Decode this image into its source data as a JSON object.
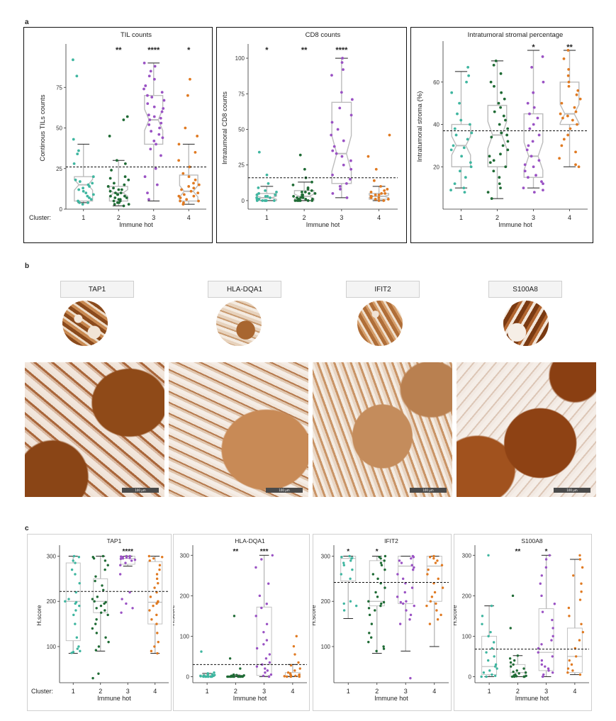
{
  "panel_labels": {
    "a": "a",
    "b": "b",
    "c": "c"
  },
  "x_axis": {
    "cluster_label": "Cluster:",
    "title": "Immune hot",
    "ticks": [
      "1",
      "2",
      "3",
      "4"
    ]
  },
  "colors": {
    "1": "#3fb6a0",
    "2": "#1f6b35",
    "3": "#9a52c4",
    "4": "#e07a22",
    "box": "#bcbcbc",
    "frame_a": "#111111",
    "frame_c": "#cfcfcf"
  },
  "ihc": {
    "markers": [
      "TAP1",
      "HLA-DQA1",
      "IFIT2",
      "S100A8"
    ],
    "scale_bar": "100 µm"
  },
  "chart_data": [
    {
      "type": "boxplot",
      "title": "TIL counts",
      "ylabel": "Continous TILs counts",
      "ylim": [
        0,
        100
      ],
      "yticks": [
        "0",
        "25",
        "50",
        "75"
      ],
      "ytick_values": [
        0,
        25,
        50,
        75
      ],
      "reference_line": 26,
      "significance": [
        "",
        "**",
        "****",
        "*"
      ],
      "notched": true,
      "boxes": [
        {
          "cluster": "1",
          "min": 4,
          "q1": 5,
          "median": 15,
          "q3": 20,
          "max": 40
        },
        {
          "cluster": "2",
          "min": 2,
          "q1": 5,
          "median": 10,
          "q3": 14,
          "max": 30
        },
        {
          "cluster": "3",
          "min": 5,
          "q1": 40,
          "median": 55,
          "q3": 70,
          "max": 90
        },
        {
          "cluster": "4",
          "min": 3,
          "q1": 5,
          "median": 11,
          "q3": 21,
          "max": 40
        }
      ],
      "points": [
        [
          92,
          82,
          43,
          36,
          34,
          28,
          20,
          18,
          17,
          16,
          15,
          14,
          13,
          12,
          11,
          10,
          9,
          8,
          7,
          6,
          5,
          4,
          4,
          3
        ],
        [
          57,
          55,
          45,
          30,
          28,
          24,
          20,
          19,
          18,
          16,
          15,
          14,
          13,
          12,
          12,
          11,
          10,
          10,
          9,
          9,
          8,
          8,
          7,
          7,
          6,
          6,
          5,
          5,
          4,
          4,
          3,
          3,
          2
        ],
        [
          90,
          88,
          85,
          82,
          80,
          76,
          74,
          72,
          70,
          69,
          67,
          65,
          63,
          62,
          60,
          58,
          57,
          56,
          55,
          53,
          52,
          50,
          48,
          46,
          44,
          42,
          40,
          37,
          33,
          25,
          20,
          15,
          10,
          6
        ],
        [
          80,
          70,
          50,
          45,
          40,
          35,
          30,
          26,
          22,
          20,
          18,
          16,
          15,
          14,
          13,
          12,
          11,
          10,
          9,
          8,
          8,
          7,
          6,
          5,
          5,
          4,
          3
        ]
      ]
    },
    {
      "type": "boxplot",
      "title": "CD8 counts",
      "ylabel": "Intratumoral CD8 counts",
      "ylim": [
        -6,
        108
      ],
      "yticks": [
        "0",
        "25",
        "50",
        "75",
        "100"
      ],
      "ytick_values": [
        0,
        25,
        50,
        75,
        100
      ],
      "reference_line": 16,
      "significance": [
        "*",
        "**",
        "****",
        ""
      ],
      "notched": true,
      "boxes": [
        {
          "cluster": "1",
          "min": 0,
          "q1": 0,
          "median": 2,
          "q3": 5,
          "max": 10
        },
        {
          "cluster": "2",
          "min": 0,
          "q1": 0,
          "median": 3,
          "q3": 7,
          "max": 13
        },
        {
          "cluster": "3",
          "min": 2,
          "q1": 12,
          "median": 33,
          "q3": 69,
          "max": 100
        },
        {
          "cluster": "4",
          "min": 0,
          "q1": 1,
          "median": 3,
          "q3": 5,
          "max": 10
        }
      ],
      "points": [
        [
          34,
          18,
          12,
          9,
          7,
          6,
          5,
          4,
          4,
          3,
          3,
          2,
          2,
          1,
          1,
          1,
          0,
          0,
          0,
          0,
          0,
          0
        ],
        [
          32,
          22,
          16,
          13,
          11,
          9,
          8,
          7,
          6,
          6,
          5,
          5,
          4,
          4,
          3,
          3,
          2,
          2,
          2,
          1,
          1,
          1,
          0,
          0,
          0,
          0,
          0,
          0
        ],
        [
          100,
          97,
          92,
          88,
          76,
          71,
          65,
          60,
          55,
          50,
          46,
          42,
          38,
          35,
          33,
          31,
          28,
          25,
          22,
          18,
          15,
          12,
          10,
          8,
          5,
          2
        ],
        [
          46,
          31,
          22,
          14,
          10,
          8,
          7,
          6,
          5,
          5,
          4,
          4,
          3,
          3,
          2,
          2,
          1,
          1,
          0,
          0
        ]
      ]
    },
    {
      "type": "boxplot",
      "title": "Intratumoral stromal percentage",
      "ylabel": "Intratumoral stroma (%)",
      "ylim": [
        0,
        78
      ],
      "yticks": [
        "20",
        "40",
        "60"
      ],
      "ytick_values": [
        20,
        40,
        60
      ],
      "reference_line": 37,
      "significance": [
        "",
        "",
        "*",
        "**"
      ],
      "notched": true,
      "boxes": [
        {
          "cluster": "1",
          "min": 10,
          "q1": 20,
          "median": 30,
          "q3": 40,
          "max": 65
        },
        {
          "cluster": "2",
          "min": 5,
          "q1": 20,
          "median": 35,
          "q3": 49,
          "max": 70
        },
        {
          "cluster": "3",
          "min": 10,
          "q1": 15,
          "median": 25,
          "q3": 45,
          "max": 75
        },
        {
          "cluster": "4",
          "min": 20,
          "q1": 40,
          "median": 45,
          "q3": 60,
          "max": 75
        }
      ],
      "points": [
        [
          67,
          63,
          60,
          55,
          50,
          45,
          42,
          40,
          38,
          36,
          35,
          33,
          30,
          29,
          28,
          25,
          22,
          20,
          18,
          15,
          12,
          10,
          9,
          8
        ],
        [
          70,
          68,
          64,
          60,
          58,
          55,
          52,
          50,
          48,
          46,
          44,
          42,
          40,
          38,
          36,
          35,
          34,
          32,
          30,
          28,
          26,
          25,
          23,
          22,
          20,
          18,
          15,
          12,
          10,
          8,
          5
        ],
        [
          72,
          67,
          60,
          55,
          50,
          48,
          45,
          43,
          40,
          38,
          35,
          32,
          30,
          28,
          25,
          23,
          21,
          20,
          18,
          16,
          15,
          13,
          12,
          10,
          9,
          8
        ],
        [
          75,
          71,
          66,
          63,
          60,
          58,
          56,
          54,
          52,
          50,
          48,
          46,
          45,
          44,
          43,
          42,
          40,
          38,
          35,
          33,
          30,
          27,
          24,
          21,
          20
        ]
      ]
    },
    {
      "type": "boxplot",
      "title": "TAP1",
      "ylabel": "H.score",
      "ylim": [
        20,
        318
      ],
      "yticks": [
        "100",
        "200",
        "300"
      ],
      "ytick_values": [
        100,
        200,
        300
      ],
      "reference_line": 222,
      "significance": [
        "",
        "",
        "****",
        ""
      ],
      "notched": false,
      "boxes": [
        {
          "cluster": "1",
          "min": 85,
          "q1": 113,
          "median": 200,
          "q3": 285,
          "max": 300
        },
        {
          "cluster": "2",
          "min": 90,
          "q1": 175,
          "median": 200,
          "q3": 250,
          "max": 300
        },
        {
          "cluster": "3",
          "min": 278,
          "q1": 282,
          "median": 295,
          "q3": 300,
          "max": 300
        },
        {
          "cluster": "4",
          "min": 85,
          "q1": 150,
          "median": 198,
          "q3": 288,
          "max": 300
        }
      ],
      "points": [
        [
          300,
          298,
          290,
          285,
          270,
          260,
          240,
          220,
          205,
          200,
          198,
          195,
          190,
          180,
          170,
          150,
          120,
          100,
          95,
          90,
          88,
          86
        ],
        [
          300,
          298,
          295,
          290,
          280,
          270,
          255,
          245,
          235,
          225,
          210,
          205,
          200,
          198,
          195,
          190,
          185,
          180,
          175,
          170,
          160,
          150,
          140,
          130,
          120,
          110,
          100,
          92,
          40,
          30
        ],
        [
          300,
          300,
          299,
          298,
          297,
          296,
          295,
          294,
          292,
          290,
          285,
          280,
          260,
          220,
          205,
          195,
          185,
          175
        ],
        [
          300,
          298,
          295,
          290,
          280,
          270,
          260,
          250,
          240,
          230,
          220,
          210,
          200,
          198,
          195,
          190,
          180,
          170,
          160,
          150,
          130,
          110,
          100,
          90,
          85
        ]
      ]
    },
    {
      "type": "boxplot",
      "title": "HLA-DQA1",
      "ylabel": "H.score",
      "ylim": [
        -15,
        318
      ],
      "yticks": [
        "0",
        "100",
        "200",
        "300"
      ],
      "ytick_values": [
        0,
        100,
        200,
        300
      ],
      "reference_line": 30,
      "significance": [
        "",
        "**",
        "***",
        ""
      ],
      "notched": false,
      "boxes": [
        {
          "cluster": "1",
          "min": 0,
          "q1": 0,
          "median": 0,
          "q3": 4,
          "max": 8
        },
        {
          "cluster": "2",
          "min": 0,
          "q1": 0,
          "median": 0,
          "q3": 2,
          "max": 4
        },
        {
          "cluster": "3",
          "min": 0,
          "q1": 3,
          "median": 30,
          "q3": 172,
          "max": 300
        },
        {
          "cluster": "4",
          "min": 0,
          "q1": 0,
          "median": 2,
          "q3": 10,
          "max": 30
        }
      ],
      "points": [
        [
          62,
          10,
          8,
          6,
          5,
          4,
          3,
          3,
          2,
          2,
          1,
          1,
          0,
          0,
          0,
          0,
          0,
          0,
          0,
          0
        ],
        [
          150,
          45,
          20,
          5,
          4,
          3,
          2,
          2,
          1,
          1,
          0,
          0,
          0,
          0,
          0,
          0,
          0,
          0,
          0,
          0,
          0,
          0
        ],
        [
          300,
          290,
          270,
          230,
          200,
          180,
          170,
          150,
          130,
          110,
          90,
          80,
          70,
          55,
          45,
          35,
          30,
          25,
          20,
          15,
          10,
          5,
          2,
          0
        ],
        [
          100,
          75,
          55,
          35,
          28,
          20,
          15,
          10,
          8,
          6,
          5,
          4,
          3,
          2,
          1,
          0,
          0,
          0
        ]
      ]
    },
    {
      "type": "boxplot",
      "title": "IFIT2",
      "ylabel": "H.score",
      "ylim": [
        20,
        318
      ],
      "yticks": [
        "100",
        "200",
        "300"
      ],
      "ytick_values": [
        100,
        200,
        300
      ],
      "reference_line": 242,
      "significance": [
        "*",
        "*",
        "",
        ""
      ],
      "notched": false,
      "boxes": [
        {
          "cluster": "1",
          "min": 162,
          "q1": 245,
          "median": 295,
          "q3": 300,
          "max": 300
        },
        {
          "cluster": "2",
          "min": 85,
          "q1": 190,
          "median": 200,
          "q3": 290,
          "max": 300
        },
        {
          "cluster": "3",
          "min": 90,
          "q1": 195,
          "median": 278,
          "q3": 300,
          "max": 300
        },
        {
          "cluster": "4",
          "min": 100,
          "q1": 200,
          "median": 278,
          "q3": 300,
          "max": 300
        }
      ],
      "points": [
        [
          300,
          298,
          296,
          295,
          290,
          285,
          280,
          270,
          260,
          250,
          200,
          195,
          190,
          180
        ],
        [
          300,
          298,
          295,
          290,
          285,
          280,
          270,
          260,
          250,
          240,
          230,
          220,
          210,
          200,
          198,
          195,
          190,
          185,
          180,
          170,
          150,
          130,
          120,
          110,
          100,
          95,
          90
        ],
        [
          300,
          298,
          295,
          290,
          285,
          280,
          275,
          270,
          260,
          250,
          240,
          230,
          220,
          210,
          200,
          198,
          195,
          190,
          180,
          170,
          160,
          150,
          30
        ],
        [
          300,
          298,
          295,
          290,
          285,
          280,
          270,
          260,
          250,
          240,
          230,
          220,
          210,
          200,
          195,
          190,
          180,
          170,
          160,
          150
        ]
      ]
    },
    {
      "type": "boxplot",
      "title": "S100A8",
      "ylabel": "H.score",
      "ylim": [
        -15,
        318
      ],
      "yticks": [
        "0",
        "100",
        "200",
        "300"
      ],
      "ytick_values": [
        0,
        100,
        200,
        300
      ],
      "reference_line": 68,
      "significance": [
        "",
        "**",
        "*",
        ""
      ],
      "notched": false,
      "boxes": [
        {
          "cluster": "1",
          "min": 0,
          "q1": 5,
          "median": 25,
          "q3": 100,
          "max": 175
        },
        {
          "cluster": "2",
          "min": 0,
          "q1": 0,
          "median": 10,
          "q3": 30,
          "max": 52
        },
        {
          "cluster": "3",
          "min": 0,
          "q1": 15,
          "median": 60,
          "q3": 168,
          "max": 300
        },
        {
          "cluster": "4",
          "min": 5,
          "q1": 10,
          "median": 50,
          "q3": 120,
          "max": 290
        }
      ],
      "points": [
        [
          300,
          175,
          150,
          130,
          110,
          100,
          85,
          70,
          60,
          50,
          40,
          30,
          25,
          20,
          15,
          10,
          5,
          2,
          0,
          0
        ],
        [
          200,
          120,
          52,
          45,
          40,
          35,
          30,
          25,
          20,
          15,
          12,
          10,
          8,
          5,
          3,
          2,
          1,
          0,
          0,
          0,
          0,
          0
        ],
        [
          300,
          290,
          270,
          250,
          230,
          200,
          180,
          160,
          140,
          120,
          100,
          90,
          80,
          70,
          60,
          50,
          40,
          30,
          25,
          20,
          15,
          10,
          5,
          0
        ],
        [
          300,
          290,
          270,
          250,
          230,
          210,
          190,
          170,
          150,
          130,
          110,
          90,
          70,
          50,
          40,
          30,
          20,
          15,
          10,
          5
        ]
      ]
    }
  ]
}
